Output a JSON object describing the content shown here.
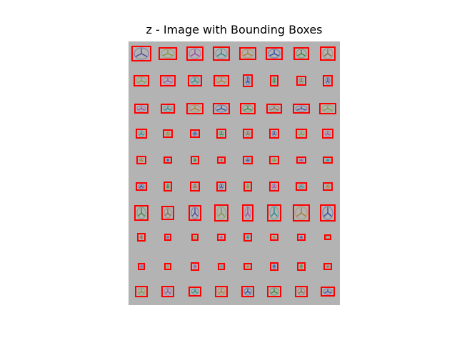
{
  "title": "z - Image with Bounding Boxes",
  "box_color": "#ff0000",
  "panel_color": "#b3b3b3",
  "sprite_colors": [
    "#4a4a9e",
    "#7a9a3a",
    "#9e4aa0",
    "#2a8a8a",
    "#b07a2a",
    "#2a4aa8",
    "#3a8a3a",
    "#8a6a4a"
  ],
  "rows": [
    {
      "cols": 8
    },
    {
      "cols": 8
    },
    {
      "cols": 8
    },
    {
      "cols": 8
    },
    {
      "cols": 8
    },
    {
      "cols": 8
    },
    {
      "cols": 8
    },
    {
      "cols": 8
    },
    {
      "cols": 8
    },
    {
      "cols": 8
    }
  ]
}
